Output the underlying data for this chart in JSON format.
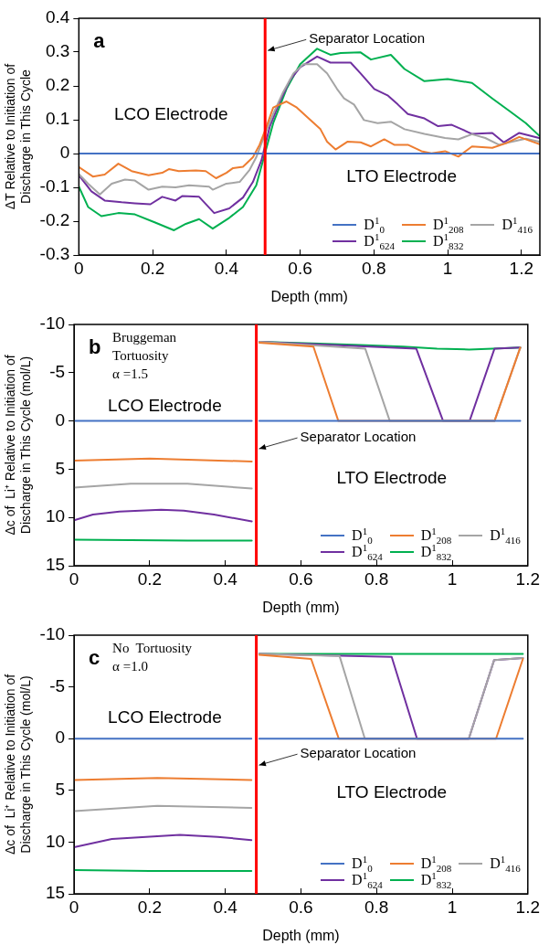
{
  "chart_data": [
    {
      "type": "line",
      "title": "a",
      "xlabel": "Depth (mm)",
      "ylabel": "ΔT Relative to Initiation of Discharge in This Cycle",
      "xlim": [
        0,
        1.25
      ],
      "xticks": [
        0,
        0.2,
        0.4,
        0.6,
        0.8,
        1,
        1.2
      ],
      "ylim": [
        -0.3,
        0.4
      ],
      "yticks": [
        -0.3,
        -0.2,
        -0.1,
        0,
        0.1,
        0.2,
        0.3,
        0.4
      ],
      "grid": false,
      "legend": "bottom right",
      "marker": "none",
      "line_style": "solid",
      "ref_lines": [
        {
          "axis": "x",
          "value": 0.505,
          "label": "Separator Location",
          "color": "#ff0000"
        }
      ],
      "annotations": [
        "LCO Electrode",
        "LTO Electrode"
      ],
      "series": [
        {
          "name": "D$^{1}$$_{0}$",
          "color": "#4472c4",
          "x": [
            0,
            1.25
          ],
          "values": [
            0,
            0
          ]
        },
        {
          "name": "D$^{1}$$_{208}$",
          "color": "#ed7d31",
          "x": [
            0,
            0.038,
            0.07,
            0.107,
            0.143,
            0.189,
            0.226,
            0.244,
            0.271,
            0.317,
            0.344,
            0.372,
            0.4,
            0.418,
            0.445,
            0.472,
            0.49,
            0.509,
            0.527,
            0.563,
            0.591,
            0.627,
            0.655,
            0.673,
            0.696,
            0.728,
            0.764,
            0.792,
            0.828,
            0.855,
            0.892,
            0.929,
            0.956,
            0.993,
            1.029,
            1.066,
            1.121,
            1.157,
            1.194,
            1.248
          ],
          "values": [
            -0.04,
            -0.068,
            -0.062,
            -0.03,
            -0.052,
            -0.064,
            -0.057,
            -0.046,
            -0.052,
            -0.05,
            -0.052,
            -0.073,
            -0.057,
            -0.043,
            -0.039,
            -0.011,
            0.026,
            0.08,
            0.136,
            0.154,
            0.136,
            0.1,
            0.072,
            0.035,
            0.012,
            0.035,
            0.033,
            0.021,
            0.042,
            0.026,
            0.026,
            0.007,
            0.001,
            0.007,
            -0.009,
            0.021,
            0.017,
            0.03,
            0.049,
            0.028
          ]
        },
        {
          "name": "D$^{1}$$_{416}$",
          "color": "#a5a5a5",
          "x": [
            0,
            0.025,
            0.057,
            0.089,
            0.125,
            0.152,
            0.189,
            0.226,
            0.262,
            0.299,
            0.353,
            0.363,
            0.4,
            0.436,
            0.463,
            0.481,
            0.5,
            0.527,
            0.554,
            0.582,
            0.609,
            0.646,
            0.673,
            0.7,
            0.719,
            0.746,
            0.773,
            0.81,
            0.846,
            0.883,
            0.937,
            0.993,
            1.029,
            1.066,
            1.102,
            1.139,
            1.175,
            1.212,
            1.248
          ],
          "values": [
            -0.061,
            -0.089,
            -0.121,
            -0.089,
            -0.077,
            -0.08,
            -0.107,
            -0.098,
            -0.1,
            -0.094,
            -0.098,
            -0.107,
            -0.089,
            -0.084,
            -0.048,
            -0.011,
            0.044,
            0.117,
            0.182,
            0.237,
            0.264,
            0.264,
            0.237,
            0.191,
            0.163,
            0.145,
            0.099,
            0.09,
            0.094,
            0.072,
            0.058,
            0.046,
            0.042,
            0.057,
            0.046,
            0.026,
            0.035,
            0.044,
            0.035
          ]
        },
        {
          "name": "D$^{1}$$_{624}$",
          "color": "#7030a0",
          "x": [
            0,
            0.034,
            0.07,
            0.116,
            0.152,
            0.194,
            0.226,
            0.262,
            0.28,
            0.326,
            0.367,
            0.408,
            0.445,
            0.472,
            0.495,
            0.518,
            0.545,
            0.573,
            0.6,
            0.646,
            0.682,
            0.737,
            0.764,
            0.801,
            0.837,
            0.865,
            0.892,
            0.937,
            0.974,
            1.011,
            1.038,
            1.066,
            1.121,
            1.152,
            1.194,
            1.248
          ],
          "values": [
            -0.064,
            -0.112,
            -0.139,
            -0.144,
            -0.147,
            -0.15,
            -0.128,
            -0.139,
            -0.126,
            -0.128,
            -0.176,
            -0.162,
            -0.13,
            -0.084,
            -0.02,
            0.081,
            0.154,
            0.218,
            0.255,
            0.287,
            0.269,
            0.269,
            0.237,
            0.191,
            0.172,
            0.145,
            0.117,
            0.104,
            0.081,
            0.085,
            0.072,
            0.058,
            0.061,
            0.033,
            0.061,
            0.046
          ]
        },
        {
          "name": "D$^{1}$$_{832}$",
          "color": "#00b050",
          "x": [
            0,
            0.025,
            0.061,
            0.107,
            0.152,
            0.207,
            0.258,
            0.29,
            0.326,
            0.363,
            0.408,
            0.445,
            0.481,
            0.504,
            0.527,
            0.563,
            0.6,
            0.646,
            0.682,
            0.71,
            0.764,
            0.792,
            0.846,
            0.883,
            0.937,
            1.0,
            1.066,
            1.121,
            1.166,
            1.212,
            1.248
          ],
          "values": [
            -0.098,
            -0.158,
            -0.185,
            -0.176,
            -0.18,
            -0.204,
            -0.227,
            -0.208,
            -0.194,
            -0.222,
            -0.19,
            -0.158,
            -0.094,
            -0.002,
            0.09,
            0.191,
            0.264,
            0.31,
            0.292,
            0.297,
            0.299,
            0.278,
            0.292,
            0.25,
            0.214,
            0.22,
            0.209,
            0.163,
            0.127,
            0.09,
            0.053
          ]
        }
      ]
    },
    {
      "type": "line",
      "title": "b",
      "subtitle": "Bruggeman\nTortuosity\nα =1.5",
      "xlabel": "Depth (mm)",
      "ylabel": "Δc of  Li⁺ Relative to Initiation of Discharge in This Cycle (mol/L)",
      "xlim": [
        0,
        1.2
      ],
      "xticks": [
        0,
        0.2,
        0.4,
        0.6,
        0.8,
        1,
        1.2
      ],
      "ylim": [
        15,
        -10
      ],
      "yticks": [
        15,
        10,
        5,
        0,
        -5,
        -10
      ],
      "grid": false,
      "legend": "bottom right",
      "marker": "none",
      "line_style": "solid",
      "ref_lines": [
        {
          "axis": "x",
          "value": 0.482,
          "label": "Separator Location",
          "color": "#ff0000"
        }
      ],
      "annotations": [
        "LCO Electrode",
        "LTO Electrode"
      ],
      "series": [
        {
          "name": "D$^{1}$$_{0}$",
          "color": "#4472c4",
          "x": [
            0,
            0.47,
            0.48,
            0.49,
            1.18
          ],
          "values": [
            0,
            0,
            null,
            0,
            0
          ]
        },
        {
          "name": "D$^{1}$$_{208}$",
          "color": "#ed7d31",
          "x": [
            0,
            0.2,
            0.47,
            0.48,
            0.49,
            0.633,
            0.699,
            1.112,
            1.18
          ],
          "values": [
            4.1,
            3.9,
            4.2,
            null,
            -8.1,
            -7.7,
            0,
            0,
            -7.6
          ]
        },
        {
          "name": "D$^{1}$$_{416}$",
          "color": "#a5a5a5",
          "x": [
            0,
            0.15,
            0.3,
            0.47,
            0.48,
            0.49,
            0.77,
            0.835,
            1.112,
            1.18
          ],
          "values": [
            6.9,
            6.5,
            6.5,
            7.0,
            null,
            -8.2,
            -7.5,
            0,
            0,
            -7.6
          ]
        },
        {
          "name": "D$^{1}$$_{624}$",
          "color": "#7030a0",
          "x": [
            0,
            0.05,
            0.12,
            0.23,
            0.29,
            0.37,
            0.47,
            0.48,
            0.49,
            0.905,
            0.976,
            1.046,
            1.112,
            1.18
          ],
          "values": [
            10.3,
            9.7,
            9.4,
            9.2,
            9.3,
            9.7,
            10.4,
            null,
            -8.2,
            -7.5,
            0,
            0,
            -7.5,
            -7.6
          ]
        },
        {
          "name": "D$^{1}$$_{832}$",
          "color": "#00b050",
          "x": [
            0,
            0.3,
            0.47,
            0.48,
            0.49,
            0.65,
            0.74,
            0.87,
            0.96,
            1.045,
            1.107,
            1.18
          ],
          "values": [
            12.3,
            12.4,
            12.4,
            null,
            -8.2,
            -8.0,
            -7.9,
            -7.7,
            -7.5,
            -7.4,
            -7.5,
            -7.6
          ]
        }
      ]
    },
    {
      "type": "line",
      "title": "c",
      "subtitle": "No  Tortuosity\nα =1.0",
      "xlabel": "Depth (mm)",
      "ylabel": "Δc of  Li⁺ Relative to Initiation of Discharge in This Cycle (mol/L)",
      "xlim": [
        0,
        1.2
      ],
      "xticks": [
        0,
        0.2,
        0.4,
        0.6,
        0.8,
        1,
        1.2
      ],
      "ylim": [
        15,
        -10
      ],
      "yticks": [
        15,
        10,
        5,
        0,
        -5,
        -10
      ],
      "grid": false,
      "legend": "bottom right",
      "marker": "none",
      "line_style": "solid",
      "ref_lines": [
        {
          "axis": "x",
          "value": 0.482,
          "label": "Separator Location",
          "color": "#ff0000"
        }
      ],
      "annotations": [
        "LCO Electrode",
        "LTO Electrode"
      ],
      "series": [
        {
          "name": "D$^{1}$$_{0}$",
          "color": "#4472c4",
          "x": [
            0,
            0.469,
            0.48,
            0.49,
            1.187
          ],
          "values": [
            0,
            0,
            null,
            0,
            0
          ]
        },
        {
          "name": "D$^{1}$$_{208}$",
          "color": "#ed7d31",
          "x": [
            0,
            0.22,
            0.469,
            0.48,
            0.49,
            0.627,
            0.7,
            1.116,
            1.187
          ],
          "values": [
            4.0,
            3.8,
            4.0,
            null,
            -8.1,
            -7.7,
            0,
            0,
            -7.7
          ]
        },
        {
          "name": "D$^{1}$$_{416}$",
          "color": "#a5a5a5",
          "x": [
            0,
            0.22,
            0.469,
            0.48,
            0.49,
            0.702,
            0.769,
            1.044,
            1.111,
            1.187
          ],
          "values": [
            7.0,
            6.5,
            6.7,
            null,
            -8.2,
            -8.0,
            0,
            0,
            -7.6,
            -7.8
          ]
        },
        {
          "name": "D$^{1}$$_{624}$",
          "color": "#7030a0",
          "x": [
            0,
            0.1,
            0.28,
            0.38,
            0.469,
            0.48,
            0.49,
            0.84,
            0.907,
            1.044,
            1.111,
            1.187
          ],
          "values": [
            10.5,
            9.7,
            9.3,
            9.5,
            9.8,
            null,
            -8.2,
            -7.9,
            0,
            0,
            -7.6,
            -7.8
          ]
        },
        {
          "name": "D$^{1}$$_{832}$",
          "color": "#00b050",
          "x": [
            0,
            0.2,
            0.469,
            0.48,
            0.49,
            0.82,
            1.187
          ],
          "values": [
            12.7,
            12.8,
            12.8,
            null,
            -8.2,
            -8.2,
            -8.2
          ]
        }
      ]
    }
  ]
}
